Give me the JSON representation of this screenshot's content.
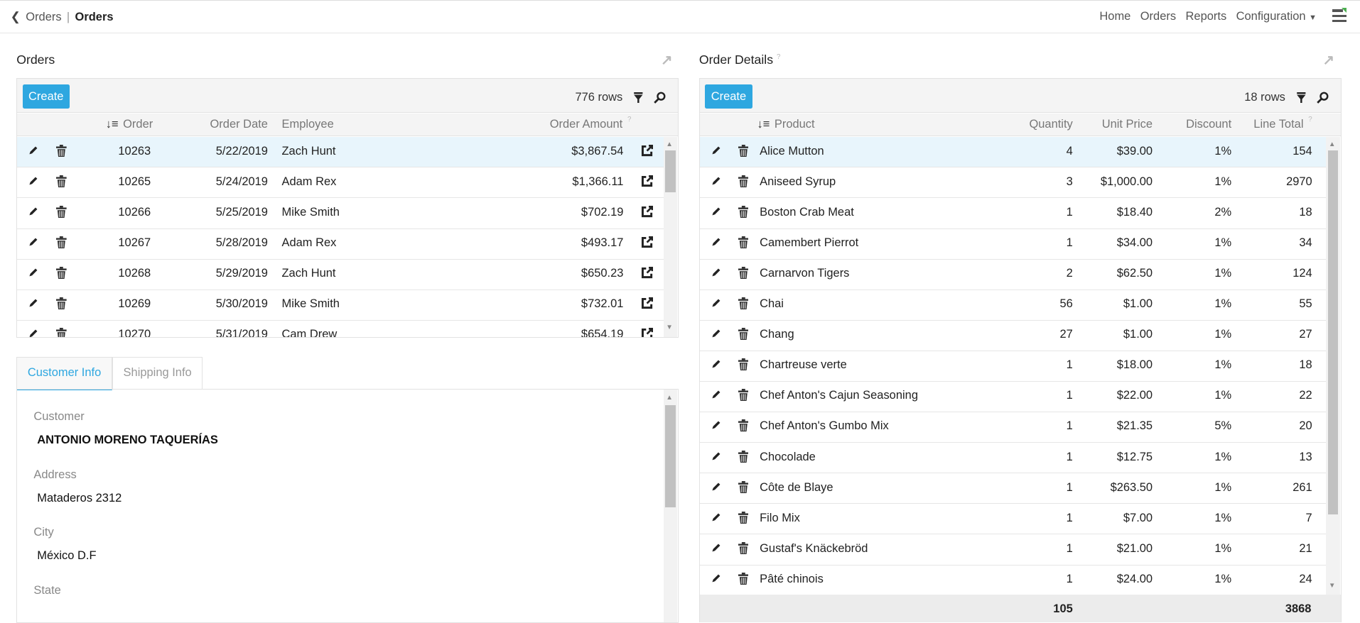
{
  "header": {
    "back_icon": "chevron-left-icon",
    "breadcrumb_parent": "Orders",
    "breadcrumb_separator": "|",
    "breadcrumb_current": "Orders",
    "nav": [
      "Home",
      "Orders",
      "Reports",
      "Configuration"
    ],
    "menu_icon": "hamburger-menu-icon"
  },
  "orders": {
    "title": "Orders",
    "create_label": "Create",
    "row_count": "776 rows",
    "columns": [
      "Order",
      "Order Date",
      "Employee",
      "Order Amount"
    ],
    "rows": [
      {
        "order": "10263",
        "date": "5/22/2019",
        "employee": "Zach Hunt",
        "amount": "$3,867.54"
      },
      {
        "order": "10265",
        "date": "5/24/2019",
        "employee": "Adam Rex",
        "amount": "$1,366.11"
      },
      {
        "order": "10266",
        "date": "5/25/2019",
        "employee": "Mike Smith",
        "amount": "$702.19"
      },
      {
        "order": "10267",
        "date": "5/28/2019",
        "employee": "Adam Rex",
        "amount": "$493.17"
      },
      {
        "order": "10268",
        "date": "5/29/2019",
        "employee": "Zach Hunt",
        "amount": "$650.23"
      },
      {
        "order": "10269",
        "date": "5/30/2019",
        "employee": "Mike Smith",
        "amount": "$732.01"
      },
      {
        "order": "10270",
        "date": "5/31/2019",
        "employee": "Cam Drew",
        "amount": "$654.19"
      }
    ]
  },
  "tabs": [
    "Customer Info",
    "Shipping Info"
  ],
  "customer_info": {
    "customer_label": "Customer",
    "customer": "ANTONIO MORENO TAQUERÍAS",
    "address_label": "Address",
    "address": "Mataderos 2312",
    "city_label": "City",
    "city": "México D.F",
    "state_label": "State"
  },
  "order_details": {
    "title": "Order Details",
    "create_label": "Create",
    "row_count": "18 rows",
    "columns": [
      "Product",
      "Quantity",
      "Unit Price",
      "Discount",
      "Line Total"
    ],
    "rows": [
      {
        "product": "Alice Mutton",
        "qty": "4",
        "price": "$39.00",
        "discount": "1%",
        "total": "154"
      },
      {
        "product": "Aniseed Syrup",
        "qty": "3",
        "price": "$1,000.00",
        "discount": "1%",
        "total": "2970"
      },
      {
        "product": "Boston Crab Meat",
        "qty": "1",
        "price": "$18.40",
        "discount": "2%",
        "total": "18"
      },
      {
        "product": "Camembert Pierrot",
        "qty": "1",
        "price": "$34.00",
        "discount": "1%",
        "total": "34"
      },
      {
        "product": "Carnarvon Tigers",
        "qty": "2",
        "price": "$62.50",
        "discount": "1%",
        "total": "124"
      },
      {
        "product": "Chai",
        "qty": "56",
        "price": "$1.00",
        "discount": "1%",
        "total": "55"
      },
      {
        "product": "Chang",
        "qty": "27",
        "price": "$1.00",
        "discount": "1%",
        "total": "27"
      },
      {
        "product": "Chartreuse verte",
        "qty": "1",
        "price": "$18.00",
        "discount": "1%",
        "total": "18"
      },
      {
        "product": "Chef Anton's Cajun Seasoning",
        "qty": "1",
        "price": "$22.00",
        "discount": "1%",
        "total": "22"
      },
      {
        "product": "Chef Anton's Gumbo Mix",
        "qty": "1",
        "price": "$21.35",
        "discount": "5%",
        "total": "20"
      },
      {
        "product": "Chocolade",
        "qty": "1",
        "price": "$12.75",
        "discount": "1%",
        "total": "13"
      },
      {
        "product": "Côte de Blaye",
        "qty": "1",
        "price": "$263.50",
        "discount": "1%",
        "total": "261"
      },
      {
        "product": "Filo Mix",
        "qty": "1",
        "price": "$7.00",
        "discount": "1%",
        "total": "7"
      },
      {
        "product": "Gustaf's Knäckebröd",
        "qty": "1",
        "price": "$21.00",
        "discount": "1%",
        "total": "21"
      },
      {
        "product": "Pâté chinois",
        "qty": "1",
        "price": "$24.00",
        "discount": "1%",
        "total": "24"
      }
    ],
    "totals": {
      "qty": "105",
      "total": "3868"
    }
  },
  "colors": {
    "accent": "#2ea7e0",
    "selected_row": "#e8f5fc",
    "toolbar": "#f4f4f4"
  }
}
